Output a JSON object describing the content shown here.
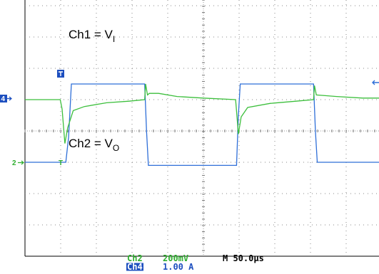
{
  "chart_data": {
    "type": "line",
    "title": "",
    "xlabel": "",
    "ylabel": "",
    "grid": true,
    "divisions": {
      "x": 10,
      "y": 8
    },
    "time_per_div_us": 50,
    "x_range_us": [
      0,
      500
    ],
    "series": [
      {
        "name": "Ch1 = VI",
        "channel_tag": "4",
        "color": "#2f6fd8",
        "ylim": [
          -3,
          5
        ],
        "points": [
          [
            0,
            0
          ],
          [
            22,
            0
          ],
          [
            23.5,
            0.8
          ],
          [
            25,
            2.5
          ],
          [
            64.5,
            2.5
          ],
          [
            65.5,
            1
          ],
          [
            66.5,
            -0.1
          ],
          [
            114,
            -0.1
          ],
          [
            115,
            1.5
          ],
          [
            116,
            2.5
          ],
          [
            155.5,
            2.5
          ],
          [
            156.5,
            1
          ],
          [
            157.5,
            0
          ],
          [
            200,
            0
          ]
        ]
      },
      {
        "name": "Ch2 = VO",
        "channel_tag": "2",
        "color": "#3cbf3c",
        "ylim": [
          -5,
          3
        ],
        "points": [
          [
            0,
            0
          ],
          [
            18,
            0
          ],
          [
            19,
            0
          ],
          [
            20,
            -0.3
          ],
          [
            21.5,
            -1.4
          ],
          [
            23,
            -0.9
          ],
          [
            26,
            -0.35
          ],
          [
            32,
            -0.22
          ],
          [
            44,
            -0.1
          ],
          [
            56,
            -0.05
          ],
          [
            64.5,
            0
          ],
          [
            65,
            0.5
          ],
          [
            66,
            0.15
          ],
          [
            67,
            0.2
          ],
          [
            72,
            0.2
          ],
          [
            82,
            0.1
          ],
          [
            96,
            0.05
          ],
          [
            113.5,
            0
          ],
          [
            115,
            -1.1
          ],
          [
            116.5,
            -0.55
          ],
          [
            120,
            -0.25
          ],
          [
            132,
            -0.12
          ],
          [
            146,
            -0.05
          ],
          [
            155.5,
            0
          ],
          [
            156,
            0.45
          ],
          [
            157,
            0.15
          ],
          [
            168,
            0.1
          ],
          [
            182,
            0.05
          ],
          [
            200,
            0.05
          ]
        ]
      }
    ],
    "labels": {
      "ch1_label": "Ch1 = V",
      "ch1_sub": "I",
      "ch2_label": "Ch2 = V",
      "ch2_sub": "O"
    },
    "trigger_marker": "T",
    "status": {
      "ch2_name": "Ch2",
      "ch2_scale": "200mV",
      "ch4_name": "Ch4",
      "ch4_scale": "1.00 A",
      "timebase": "M 50.0µs"
    }
  }
}
